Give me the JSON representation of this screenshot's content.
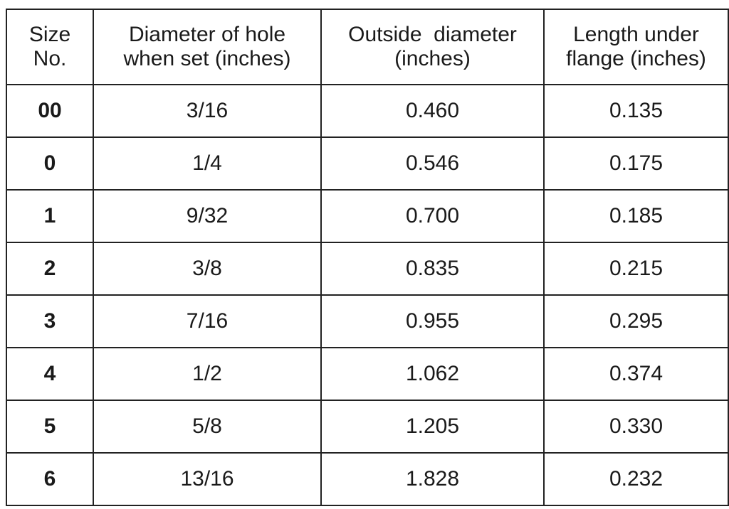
{
  "table": {
    "header": [
      [
        "Size",
        "No."
      ],
      [
        "Diameter of hole",
        "when set (inches)"
      ],
      [
        "Outside  diameter",
        "(inches)"
      ],
      [
        "Length under",
        "flange (inches)"
      ]
    ],
    "rows": [
      [
        "00",
        "3/16",
        "0.460",
        "0.135"
      ],
      [
        "0",
        "1/4",
        "0.546",
        "0.175"
      ],
      [
        "1",
        "9/32",
        "0.700",
        "0.185"
      ],
      [
        "2",
        "3/8",
        "0.835",
        "0.215"
      ],
      [
        "3",
        "7/16",
        "0.955",
        "0.295"
      ],
      [
        "4",
        "1/2",
        "1.062",
        "0.374"
      ],
      [
        "5",
        "5/8",
        "1.205",
        "0.330"
      ],
      [
        "6",
        "13/16",
        "1.828",
        "0.232"
      ]
    ]
  }
}
